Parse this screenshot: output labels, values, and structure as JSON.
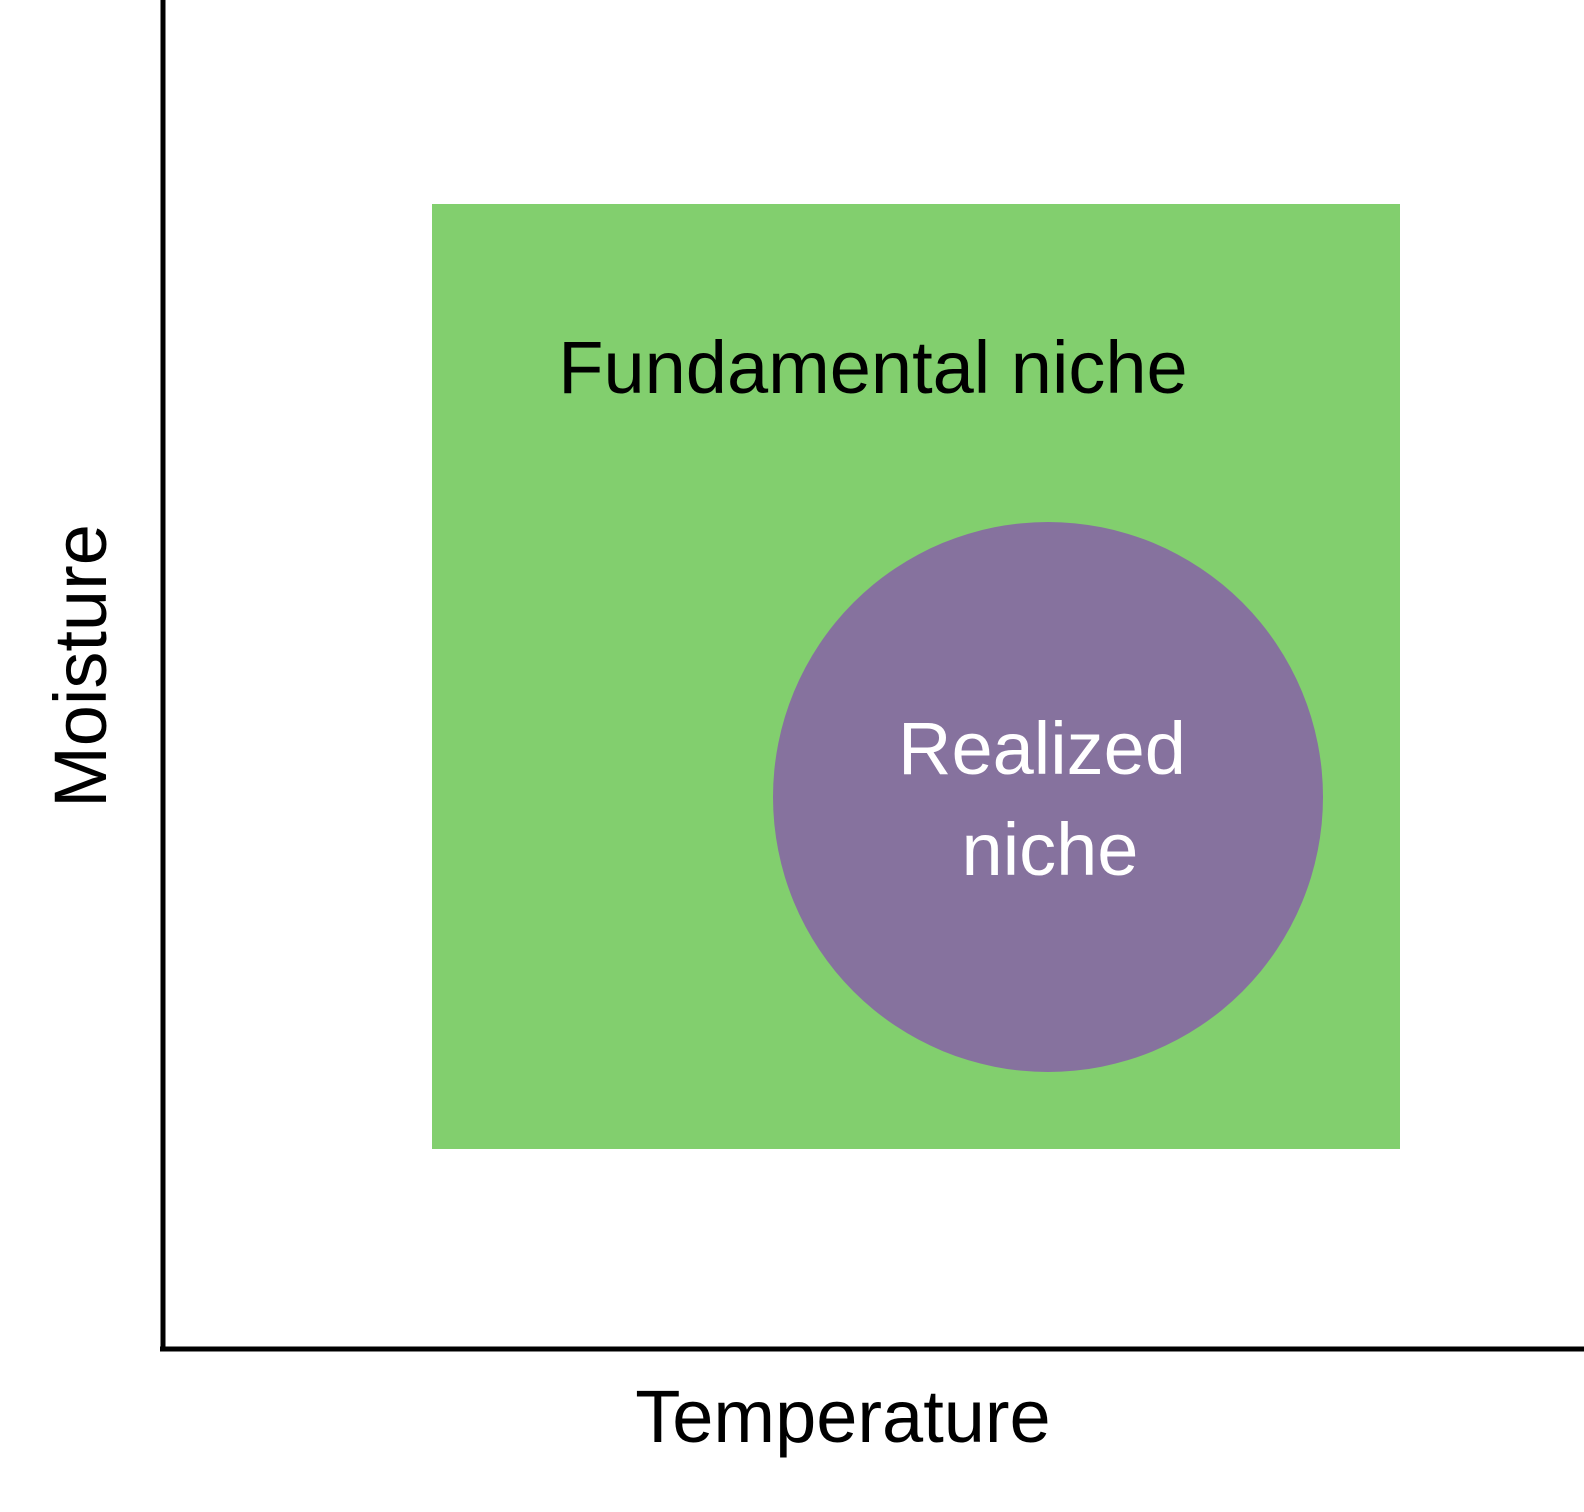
{
  "diagram": {
    "x_axis_label": "Temperature",
    "y_axis_label": "Moisture",
    "fundamental_niche": {
      "label": "Fundamental niche",
      "color": "#82CF6E"
    },
    "realized_niche": {
      "label_line1": "Realized",
      "label_line2": "niche",
      "color": "#86729E",
      "text_color": "#FFFFFF"
    },
    "axis_color": "#000000"
  }
}
